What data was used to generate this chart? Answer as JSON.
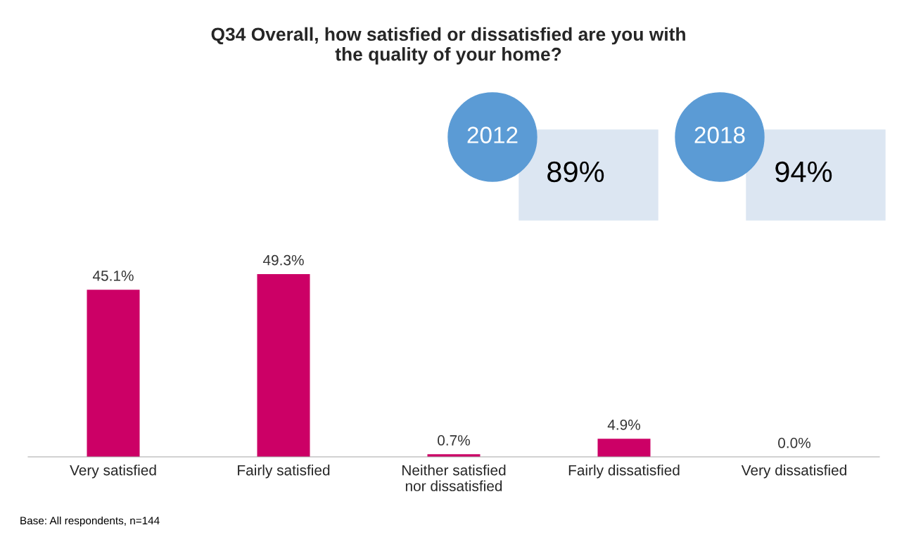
{
  "chart_data": {
    "type": "bar",
    "title": "Q34 Overall, how satisfied or dissatisfied are you with\nthe quality of your home?",
    "categories": [
      "Very satisfied",
      "Fairly satisfied",
      "Neither satisfied\nnor dissatisfied",
      "Fairly dissatisfied",
      "Very dissatisfied"
    ],
    "values": [
      45.1,
      49.3,
      0.7,
      4.9,
      0.0
    ],
    "value_labels": [
      "45.1%",
      "49.3%",
      "0.7%",
      "4.9%",
      "0.0%"
    ],
    "color": "#cc0066",
    "grid": false,
    "annotations": [
      "2012",
      "89%",
      "2018",
      "94%",
      "Base: All respondents, n=144"
    ]
  }
}
